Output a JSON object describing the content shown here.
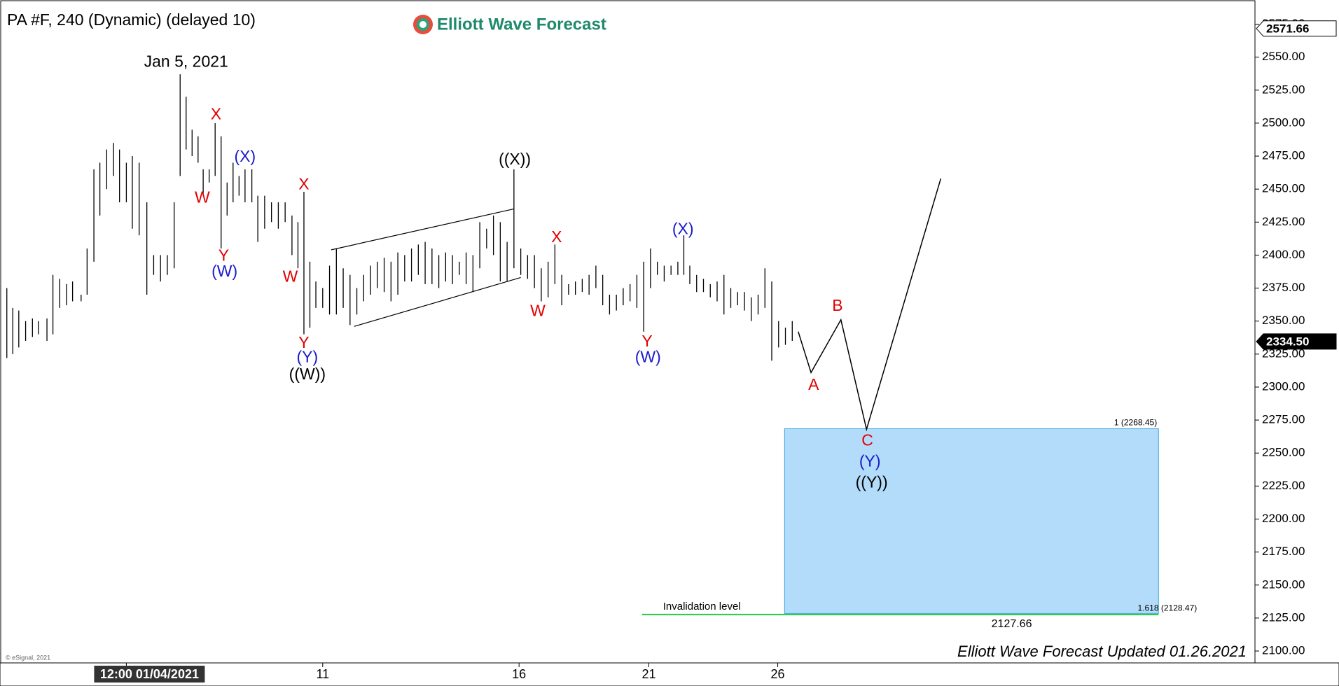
{
  "chart_data": {
    "type": "ohlc",
    "title": "PA #F, 240 (Dynamic) (delayed 10)",
    "logo": "Elliott Wave Forecast",
    "footer": "Elliott Wave Forecast Updated 01.26.2021",
    "copyright": "© eSignal, 2021",
    "xlim": [
      0,
      1470
    ],
    "ylim": [
      2091,
      2593.3
    ],
    "xticks": [
      {
        "value": 148,
        "label": "12:00 01/04/2021"
      },
      {
        "value": 378,
        "label": "11"
      },
      {
        "value": 608,
        "label": "16"
      },
      {
        "value": 760,
        "label": "21"
      },
      {
        "value": 911,
        "label": "26"
      }
    ],
    "yticks": [
      {
        "value": 2100,
        "label": "2100.00"
      },
      {
        "value": 2125,
        "label": "2125.00"
      },
      {
        "value": 2150,
        "label": "2150.00"
      },
      {
        "value": 2175,
        "label": "2175.00"
      },
      {
        "value": 2200,
        "label": "2200.00"
      },
      {
        "value": 2225,
        "label": "2225.00"
      },
      {
        "value": 2250,
        "label": "2250.00"
      },
      {
        "value": 2275,
        "label": "2275.00"
      },
      {
        "value": 2300,
        "label": "2300.00"
      },
      {
        "value": 2325,
        "label": "2325.00"
      },
      {
        "value": 2350,
        "label": "2350.00"
      },
      {
        "value": 2375,
        "label": "2375.00"
      },
      {
        "value": 2400,
        "label": "2400.00"
      },
      {
        "value": 2425,
        "label": "2425.00"
      },
      {
        "value": 2450,
        "label": "2450.00"
      },
      {
        "value": 2475,
        "label": "2475.00"
      },
      {
        "value": 2500,
        "label": "2500.00"
      },
      {
        "value": 2525,
        "label": "2525.00"
      },
      {
        "value": 2550,
        "label": "2550.00"
      },
      {
        "value": 2575,
        "label": "2575.00"
      }
    ],
    "price_markers": [
      {
        "value": 2571.66,
        "label": "2571.66",
        "color": "#ffffff"
      },
      {
        "value": 2334.5,
        "label": "2334.50",
        "color": "#000000"
      }
    ],
    "bars": {
      "color": "#000000",
      "x": [
        8,
        15,
        22,
        30,
        38,
        45,
        55,
        62,
        70,
        78,
        85,
        95,
        102,
        110,
        117,
        125,
        133,
        140,
        148,
        155,
        163,
        172,
        180,
        188,
        196,
        204,
        211,
        218,
        225,
        232,
        238,
        245,
        252,
        259,
        266,
        273,
        280,
        287,
        295,
        302,
        310,
        318,
        326,
        334,
        342,
        349,
        356,
        363,
        370,
        378,
        386,
        394,
        402,
        410,
        418,
        426,
        434,
        442,
        450,
        458,
        466,
        474,
        482,
        490,
        498,
        506,
        514,
        522,
        530,
        538,
        546,
        554,
        562,
        570,
        578,
        586,
        594,
        602,
        610,
        618,
        626,
        634,
        642,
        650,
        658,
        666,
        674,
        682,
        690,
        698,
        706,
        714,
        722,
        730,
        738,
        746,
        754,
        762,
        770,
        778,
        786,
        794,
        801,
        808,
        816,
        824,
        832,
        840,
        848,
        856,
        864,
        872,
        880,
        888,
        896,
        904,
        912,
        920,
        928
      ],
      "high": [
        2375,
        2360,
        2358,
        2350,
        2352,
        2350,
        2352,
        2385,
        2382,
        2378,
        2380,
        2370,
        2405,
        2465,
        2470,
        2480,
        2485,
        2480,
        2470,
        2475,
        2470,
        2440,
        2400,
        2400,
        2400,
        2440,
        2537,
        2520,
        2495,
        2490,
        2465,
        2465,
        2500,
        2490,
        2455,
        2470,
        2460,
        2465,
        2465,
        2445,
        2445,
        2440,
        2440,
        2440,
        2430,
        2425,
        2448,
        2395,
        2380,
        2375,
        2392,
        2405,
        2390,
        2385,
        2375,
        2385,
        2392,
        2395,
        2398,
        2395,
        2402,
        2400,
        2405,
        2408,
        2410,
        2405,
        2400,
        2402,
        2400,
        2395,
        2402,
        2400,
        2425,
        2420,
        2430,
        2425,
        2410,
        2465,
        2405,
        2400,
        2400,
        2390,
        2395,
        2408,
        2385,
        2378,
        2380,
        2382,
        2385,
        2392,
        2385,
        2370,
        2370,
        2375,
        2378,
        2385,
        2395,
        2405,
        2395,
        2392,
        2392,
        2395,
        2415,
        2392,
        2385,
        2382,
        2378,
        2380,
        2385,
        2375,
        2372,
        2372,
        2368,
        2370,
        2390,
        2380,
        2350,
        2345,
        2350
      ],
      "low": [
        2322,
        2325,
        2330,
        2335,
        2338,
        2340,
        2335,
        2340,
        2360,
        2362,
        2365,
        2365,
        2370,
        2395,
        2430,
        2450,
        2460,
        2440,
        2440,
        2420,
        2415,
        2370,
        2385,
        2380,
        2385,
        2390,
        2460,
        2480,
        2475,
        2470,
        2445,
        2455,
        2460,
        2405,
        2430,
        2440,
        2445,
        2440,
        2440,
        2410,
        2420,
        2425,
        2420,
        2425,
        2400,
        2390,
        2340,
        2345,
        2360,
        2360,
        2355,
        2355,
        2360,
        2347,
        2355,
        2365,
        2370,
        2375,
        2372,
        2365,
        2370,
        2380,
        2380,
        2385,
        2378,
        2378,
        2375,
        2380,
        2378,
        2385,
        2378,
        2372,
        2390,
        2405,
        2400,
        2380,
        2380,
        2390,
        2385,
        2382,
        2375,
        2365,
        2368,
        2378,
        2362,
        2370,
        2370,
        2372,
        2370,
        2375,
        2362,
        2355,
        2358,
        2362,
        2365,
        2360,
        2342,
        2375,
        2385,
        2380,
        2385,
        2385,
        2385,
        2378,
        2372,
        2372,
        2368,
        2365,
        2355,
        2360,
        2362,
        2358,
        2350,
        2355,
        2360,
        2320,
        2330,
        2332,
        2335
      ]
    },
    "projection": {
      "color": "#000000",
      "x": [
        935,
        950,
        985,
        1015,
        1102
      ],
      "values": [
        2342,
        2311,
        2351,
        2268,
        2458
      ]
    },
    "channel": [
      {
        "x": [
          388,
          602
        ],
        "values": [
          2404,
          2435
        ]
      },
      {
        "x": [
          415,
          610
        ],
        "values": [
          2346,
          2383
        ]
      }
    ],
    "target_box": {
      "color": "#b3dcfa",
      "x": [
        919,
        1357
      ],
      "values": [
        2268.45,
        2128.47
      ],
      "top_label": "1 (2268.45)",
      "bottom_label": "1.618 (2128.47)"
    },
    "invalidation": {
      "color": "#22cc44",
      "x": [
        752,
        1357
      ],
      "value": 2127.66,
      "label": "Invalidation level",
      "value_label": "2127.66"
    },
    "annotations": [
      {
        "text": "Jan 5, 2021",
        "x": 218,
        "y": 2546,
        "color": "#000000"
      },
      {
        "text": "X",
        "x": 253,
        "y": 2506,
        "color": "#e00000"
      },
      {
        "text": "W",
        "x": 237,
        "y": 2443,
        "color": "#e00000"
      },
      {
        "text": "(X)",
        "x": 287,
        "y": 2474,
        "color": "#1a1acc"
      },
      {
        "text": "Y",
        "x": 262,
        "y": 2399,
        "color": "#e00000"
      },
      {
        "text": "(W)",
        "x": 263,
        "y": 2387,
        "color": "#1a1acc"
      },
      {
        "text": "X",
        "x": 356,
        "y": 2453,
        "color": "#e00000"
      },
      {
        "text": "W",
        "x": 340,
        "y": 2383,
        "color": "#e00000"
      },
      {
        "text": "Y",
        "x": 356,
        "y": 2333,
        "color": "#e00000"
      },
      {
        "text": "(Y)",
        "x": 360,
        "y": 2322,
        "color": "#1a1acc"
      },
      {
        "text": "((W))",
        "x": 360,
        "y": 2309,
        "color": "#000000"
      },
      {
        "text": "((X))",
        "x": 603,
        "y": 2472,
        "color": "#000000"
      },
      {
        "text": "X",
        "x": 652,
        "y": 2413,
        "color": "#e00000"
      },
      {
        "text": "W",
        "x": 630,
        "y": 2357,
        "color": "#e00000"
      },
      {
        "text": "(X)",
        "x": 800,
        "y": 2419,
        "color": "#1a1acc"
      },
      {
        "text": "Y",
        "x": 758,
        "y": 2334,
        "color": "#e00000"
      },
      {
        "text": "(W)",
        "x": 759,
        "y": 2322,
        "color": "#1a1acc"
      },
      {
        "text": "B",
        "x": 981,
        "y": 2361,
        "color": "#e00000"
      },
      {
        "text": "A",
        "x": 953,
        "y": 2301,
        "color": "#e00000"
      },
      {
        "text": "C",
        "x": 1016,
        "y": 2259,
        "color": "#e00000"
      },
      {
        "text": "(Y)",
        "x": 1019,
        "y": 2243,
        "color": "#1a1acc"
      },
      {
        "text": "((Y))",
        "x": 1021,
        "y": 2227,
        "color": "#000000"
      }
    ]
  }
}
